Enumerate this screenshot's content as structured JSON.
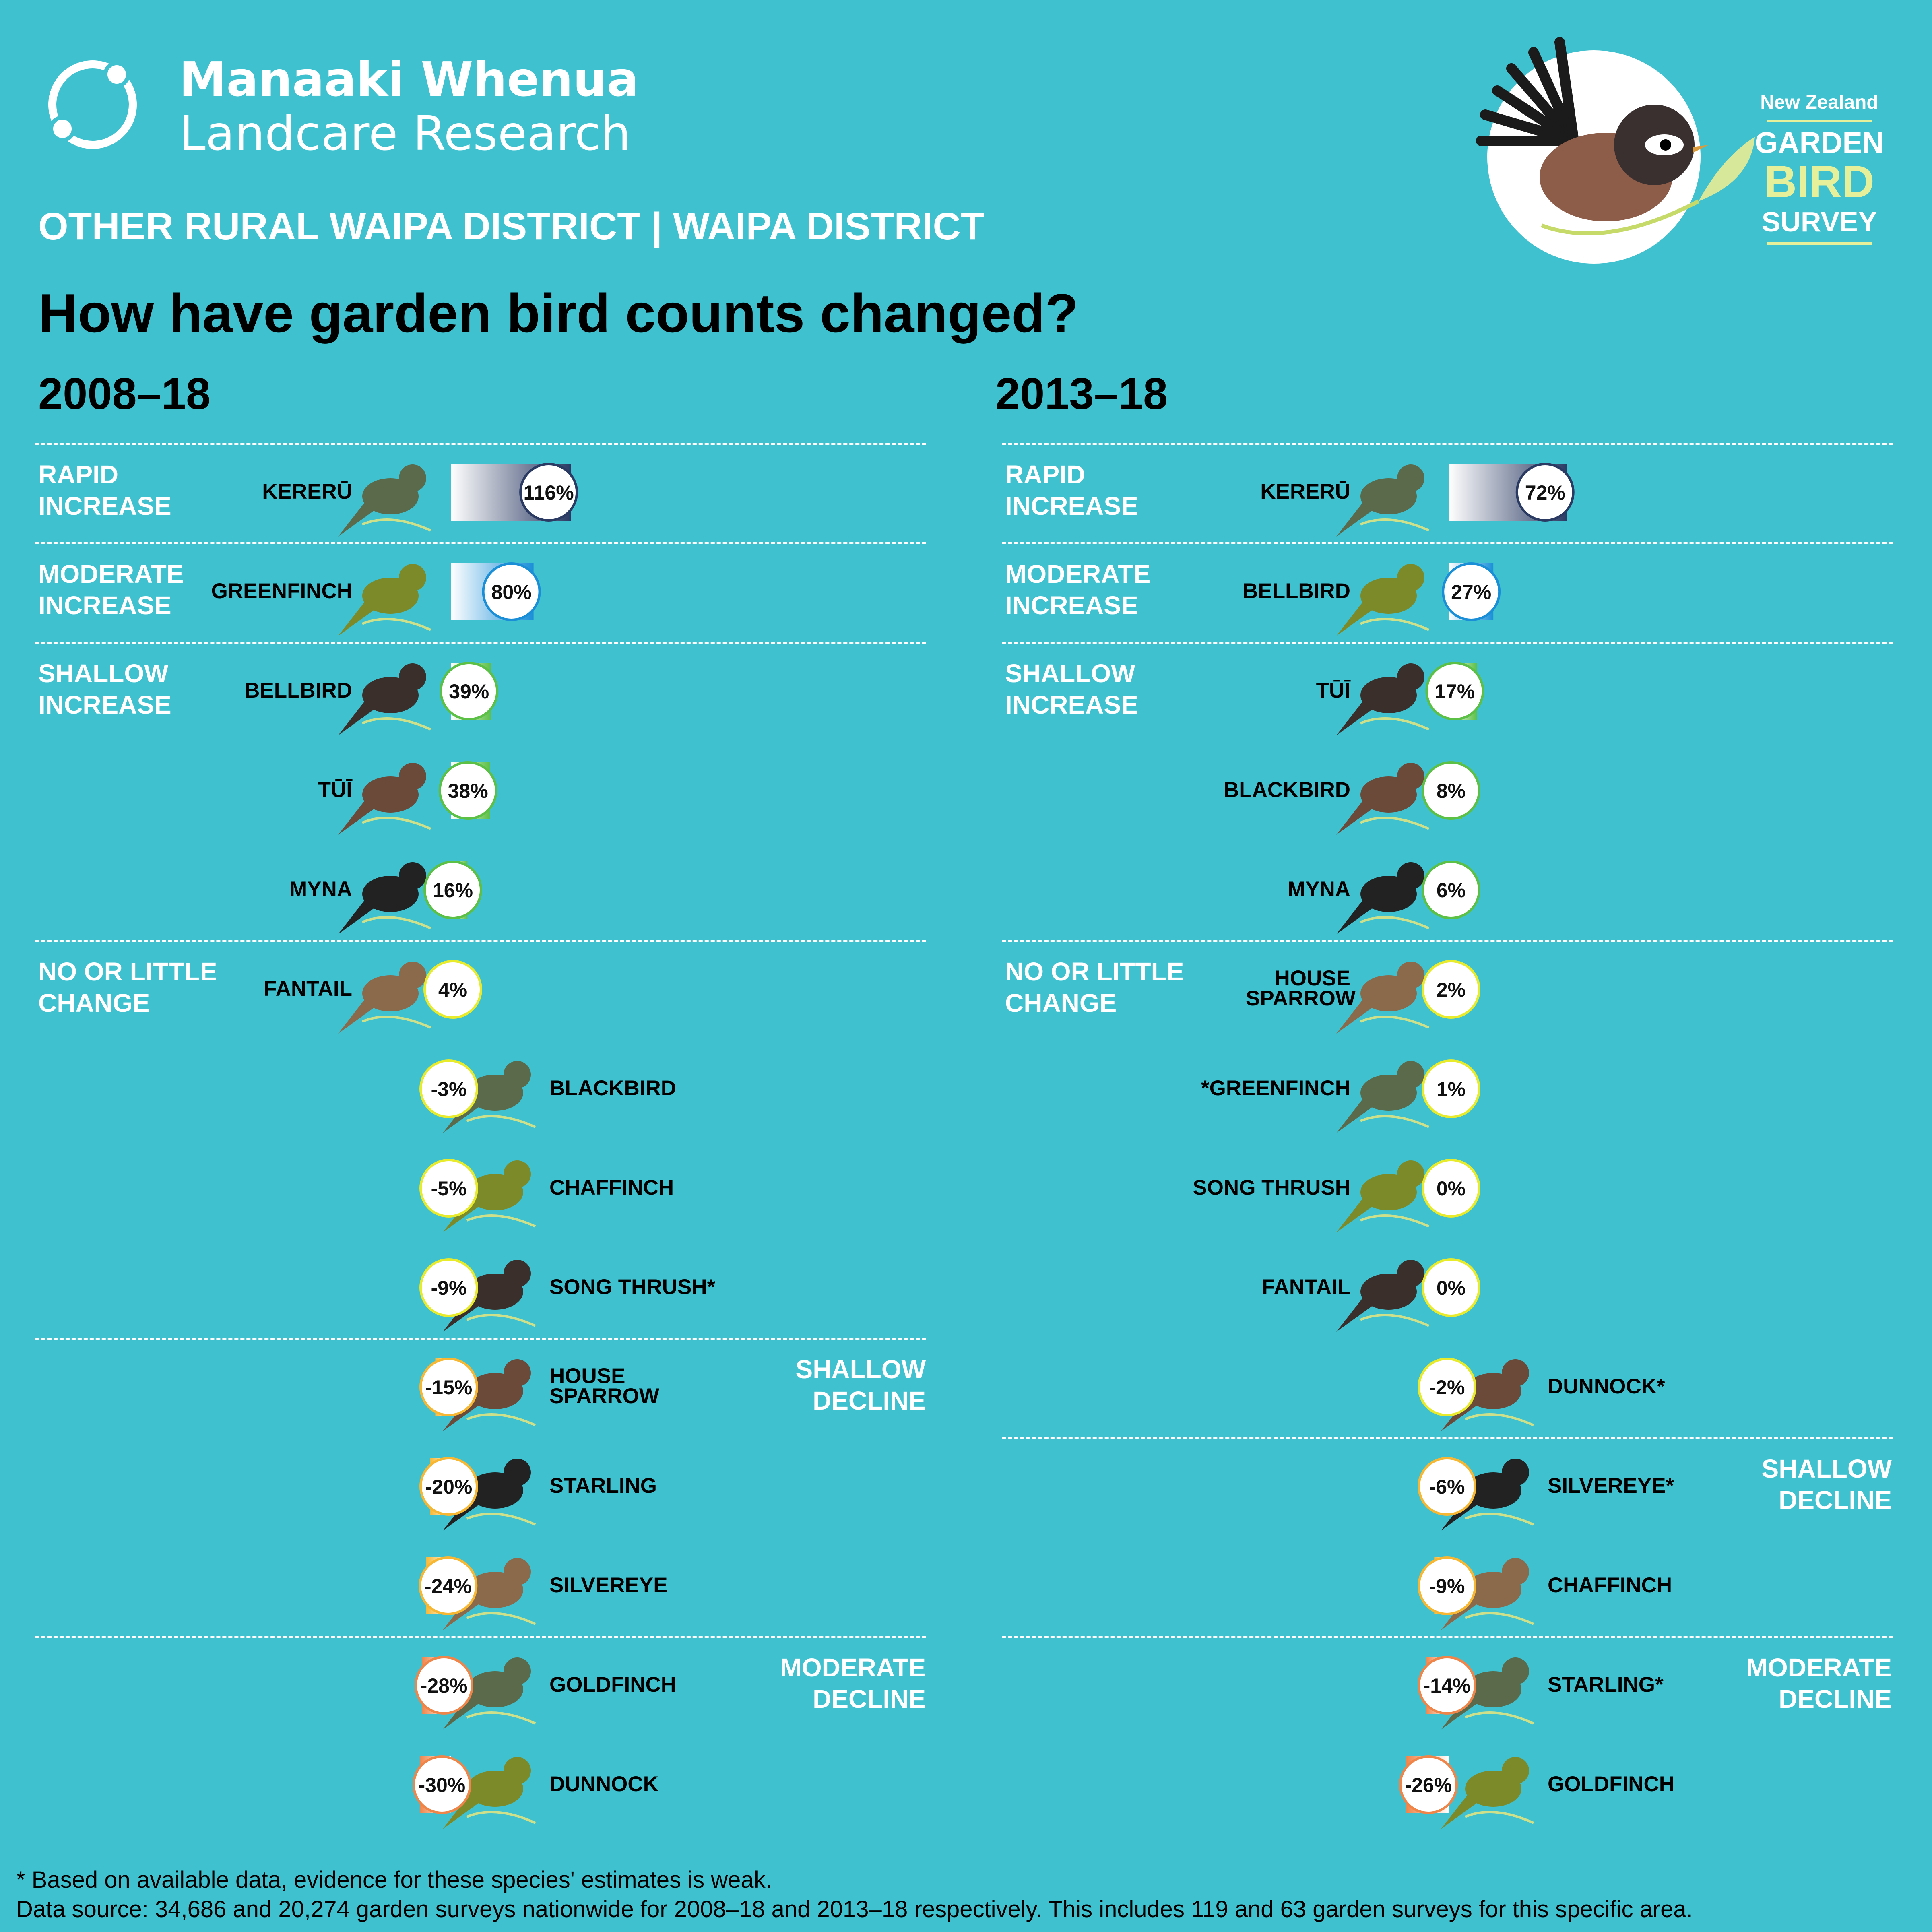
{
  "brand": {
    "line1": "Manaaki Whenua",
    "line2": "Landcare Research"
  },
  "survey_logo": {
    "line1": "New Zealand",
    "line2": "GARDEN",
    "line3": "BIRD",
    "line4": "SURVEY"
  },
  "subtitle": "OTHER RURAL WAIPA DISTRICT | WAIPA DISTRICT",
  "title": "How have garden bird counts changed?",
  "colors": {
    "background": "#3fc1cf",
    "rapid_increase": "#2a3a63",
    "moderate_increase": "#1a8fd8",
    "shallow_increase": "#5cc046",
    "no_change": "#e8ea2c",
    "shallow_decline": "#f7b733",
    "moderate_decline": "#f0854a"
  },
  "panels": [
    {
      "period": "2008–18",
      "categories": [
        {
          "label_lines": [
            "RAPID",
            "INCREASE"
          ],
          "side": "left",
          "first_row": 0
        },
        {
          "label_lines": [
            "MODERATE",
            "INCREASE"
          ],
          "side": "left",
          "first_row": 1
        },
        {
          "label_lines": [
            "SHALLOW",
            "INCREASE"
          ],
          "side": "left",
          "first_row": 2
        },
        {
          "label_lines": [
            "NO OR LITTLE",
            "CHANGE"
          ],
          "side": "left",
          "first_row": 5
        },
        {
          "label_lines": [
            "SHALLOW",
            "DECLINE"
          ],
          "side": "right",
          "first_row": 9
        },
        {
          "label_lines": [
            "MODERATE",
            "DECLINE"
          ],
          "side": "right",
          "first_row": 12
        }
      ]
    },
    {
      "period": "2013–18",
      "categories": [
        {
          "label_lines": [
            "RAPID",
            "INCREASE"
          ],
          "side": "left",
          "first_row": 0
        },
        {
          "label_lines": [
            "MODERATE",
            "INCREASE"
          ],
          "side": "left",
          "first_row": 1
        },
        {
          "label_lines": [
            "SHALLOW",
            "INCREASE"
          ],
          "side": "left",
          "first_row": 2
        },
        {
          "label_lines": [
            "NO OR LITTLE",
            "CHANGE"
          ],
          "side": "left",
          "first_row": 5
        },
        {
          "label_lines": [
            "SHALLOW",
            "DECLINE"
          ],
          "side": "right",
          "first_row": 10
        },
        {
          "label_lines": [
            "MODERATE",
            "DECLINE"
          ],
          "side": "right",
          "first_row": 12
        }
      ]
    }
  ],
  "chart_data": [
    {
      "type": "bar",
      "title": "2008–18",
      "unit": "%",
      "bars": [
        {
          "bird": "KERERŪ",
          "value": 116,
          "label": "116%",
          "category": "RAPID INCREASE"
        },
        {
          "bird": "GREENFINCH",
          "value": 80,
          "label": "80%",
          "category": "MODERATE INCREASE"
        },
        {
          "bird": "BELLBIRD",
          "value": 39,
          "label": "39%",
          "category": "SHALLOW INCREASE"
        },
        {
          "bird": "TŪĪ",
          "value": 38,
          "label": "38%",
          "category": "SHALLOW INCREASE"
        },
        {
          "bird": "MYNA",
          "value": 16,
          "label": "16%",
          "category": "SHALLOW INCREASE"
        },
        {
          "bird": "FANTAIL",
          "value": 4,
          "label": "4%",
          "category": "NO OR LITTLE CHANGE"
        },
        {
          "bird": "BLACKBIRD",
          "value": -3,
          "label": "-3%",
          "category": "NO OR LITTLE CHANGE"
        },
        {
          "bird": "CHAFFINCH",
          "value": -5,
          "label": "-5%",
          "category": "NO OR LITTLE CHANGE"
        },
        {
          "bird": "SONG THRUSH*",
          "value": -9,
          "label": "-9%",
          "category": "NO OR LITTLE CHANGE"
        },
        {
          "bird": "HOUSE SPARROW",
          "value": -15,
          "label": "-15%",
          "category": "SHALLOW DECLINE"
        },
        {
          "bird": "STARLING",
          "value": -20,
          "label": "-20%",
          "category": "SHALLOW DECLINE"
        },
        {
          "bird": "SILVEREYE",
          "value": -24,
          "label": "-24%",
          "category": "SHALLOW DECLINE"
        },
        {
          "bird": "GOLDFINCH",
          "value": -28,
          "label": "-28%",
          "category": "MODERATE DECLINE"
        },
        {
          "bird": "DUNNOCK",
          "value": -30,
          "label": "-30%",
          "category": "MODERATE DECLINE"
        }
      ]
    },
    {
      "type": "bar",
      "title": "2013–18",
      "unit": "%",
      "bars": [
        {
          "bird": "KERERŪ",
          "value": 72,
          "label": "72%",
          "category": "RAPID INCREASE"
        },
        {
          "bird": "BELLBIRD",
          "value": 27,
          "label": "27%",
          "category": "MODERATE INCREASE"
        },
        {
          "bird": "TŪĪ",
          "value": 17,
          "label": "17%",
          "category": "SHALLOW INCREASE"
        },
        {
          "bird": "BLACKBIRD",
          "value": 8,
          "label": "8%",
          "category": "SHALLOW INCREASE"
        },
        {
          "bird": "MYNA",
          "value": 6,
          "label": "6%",
          "category": "SHALLOW INCREASE"
        },
        {
          "bird": "HOUSE SPARROW",
          "value": 2,
          "label": "2%",
          "category": "NO OR LITTLE CHANGE"
        },
        {
          "bird": "*GREENFINCH",
          "value": 1,
          "label": "1%",
          "category": "NO OR LITTLE CHANGE"
        },
        {
          "bird": "SONG THRUSH",
          "value": 0,
          "label": "0%",
          "category": "NO OR LITTLE CHANGE"
        },
        {
          "bird": "FANTAIL",
          "value": 0,
          "label": "0%",
          "category": "NO OR LITTLE CHANGE"
        },
        {
          "bird": "DUNNOCK*",
          "value": -2,
          "label": "-2%",
          "category": "NO OR LITTLE CHANGE"
        },
        {
          "bird": "SILVEREYE*",
          "value": -6,
          "label": "-6%",
          "category": "SHALLOW DECLINE"
        },
        {
          "bird": "CHAFFINCH",
          "value": -9,
          "label": "-9%",
          "category": "SHALLOW DECLINE"
        },
        {
          "bird": "STARLING*",
          "value": -14,
          "label": "-14%",
          "category": "MODERATE DECLINE"
        },
        {
          "bird": "GOLDFINCH",
          "value": -26,
          "label": "-26%",
          "category": "MODERATE DECLINE"
        }
      ]
    }
  ],
  "footnotes": {
    "weak_evidence": "* Based on available data, evidence for these species' estimates is weak.",
    "data_source": "Data source: 34,686 and 20,274 garden surveys nationwide for 2008–18 and 2013–18 respectively. This includes 119 and 63 garden surveys for this specific area."
  }
}
